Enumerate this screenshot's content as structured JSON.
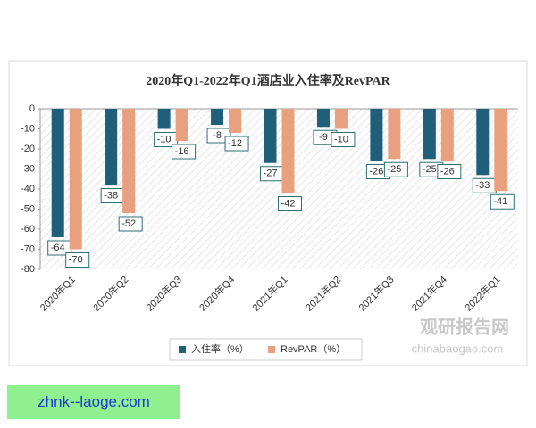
{
  "chart_data": {
    "type": "bar",
    "title": "2020年Q1-2022年Q1酒店业入住率及RevPAR",
    "categories": [
      "2020年Q1",
      "2020年Q2",
      "2020年Q3",
      "2020年Q4",
      "2021年Q1",
      "2021年Q2",
      "2021年Q3",
      "2021年Q4",
      "2022年Q1"
    ],
    "series": [
      {
        "name": "入住率（%）",
        "color": "#1f5f7a",
        "values": [
          -64,
          -38,
          -10,
          -8,
          -27,
          -9,
          -26,
          -25,
          -33
        ]
      },
      {
        "name": "RevPAR（%）",
        "color": "#e8a07e",
        "values": [
          -70,
          -52,
          -16,
          -12,
          -42,
          -10,
          -25,
          -26,
          -41
        ]
      }
    ],
    "ylim": [
      -80,
      0
    ],
    "yticks": [
      0,
      -10,
      -20,
      -30,
      -40,
      -50,
      -60,
      -70,
      -80
    ],
    "legend": "bottom"
  },
  "watermark": {
    "name": "观研报告网",
    "url": "chinabaogao.com"
  },
  "banner": "zhnk--laoge.com"
}
